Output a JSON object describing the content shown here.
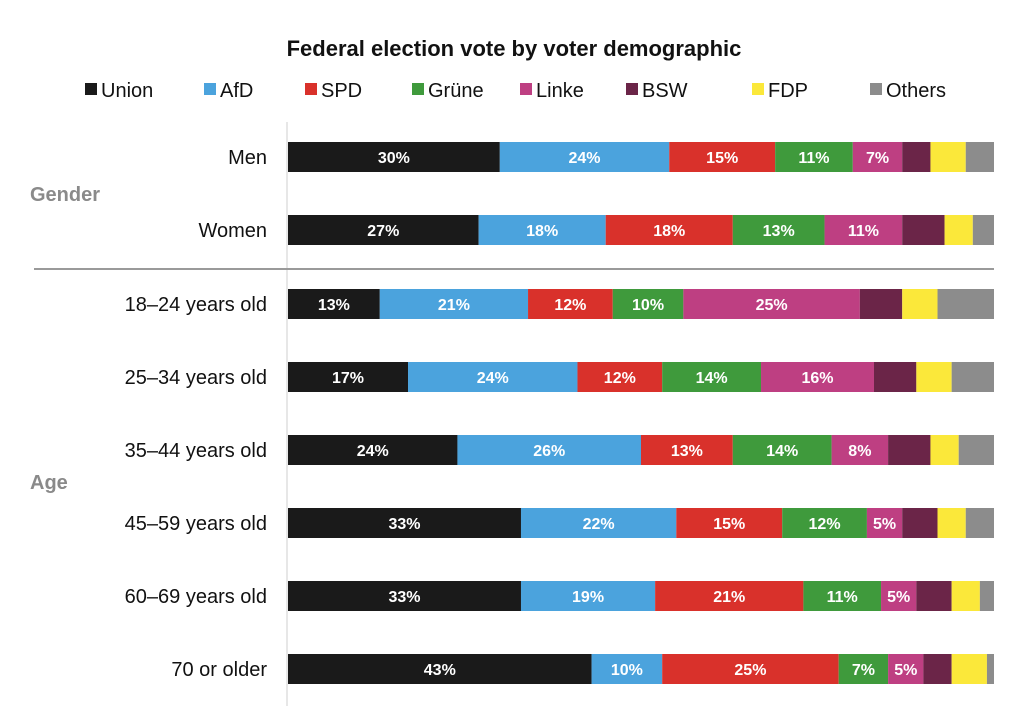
{
  "chart_data": {
    "type": "bar",
    "orientation": "horizontal",
    "stacked": true,
    "title": "Federal election vote by voter demographic",
    "legend_position": "top",
    "xlim": [
      0,
      100
    ],
    "groups": [
      {
        "label": "Gender",
        "rows": [
          "Men",
          "Women"
        ]
      },
      {
        "label": "Age",
        "rows": [
          "18–24 years old",
          "25–34 years old",
          "35–44 years old",
          "45–59 years old",
          "60–69 years old",
          "70 or older"
        ]
      }
    ],
    "categories": [
      "Men",
      "Women",
      "18–24 years old",
      "25–34 years old",
      "35–44 years old",
      "45–59 years old",
      "60–69 years old",
      "70 or older"
    ],
    "series": [
      {
        "name": "Union",
        "color": "#1a1a1a",
        "values": [
          30,
          27,
          13,
          17,
          24,
          33,
          33,
          43
        ]
      },
      {
        "name": "AfD",
        "color": "#4ba3dd",
        "values": [
          24,
          18,
          21,
          24,
          26,
          22,
          19,
          10
        ]
      },
      {
        "name": "SPD",
        "color": "#d9312b",
        "values": [
          15,
          18,
          12,
          12,
          13,
          15,
          21,
          25
        ]
      },
      {
        "name": "Grüne",
        "color": "#3f9a3c",
        "values": [
          11,
          13,
          10,
          14,
          14,
          12,
          11,
          7
        ]
      },
      {
        "name": "Linke",
        "color": "#be3f82",
        "values": [
          7,
          11,
          25,
          16,
          8,
          5,
          5,
          5
        ]
      },
      {
        "name": "BSW",
        "color": "#6b2548",
        "values": [
          4,
          6,
          6,
          6,
          6,
          5,
          5,
          4
        ]
      },
      {
        "name": "FDP",
        "color": "#fbe83a",
        "values": [
          5,
          4,
          5,
          5,
          4,
          4,
          4,
          5
        ]
      },
      {
        "name": "Others",
        "color": "#8c8c8c",
        "values": [
          4,
          3,
          8,
          6,
          5,
          4,
          2,
          1
        ]
      }
    ],
    "data_labels": [
      [
        "30%",
        "24%",
        "15%",
        "11%",
        "7%",
        "",
        "",
        ""
      ],
      [
        "27%",
        "18%",
        "18%",
        "13%",
        "11%",
        "",
        "",
        ""
      ],
      [
        "13%",
        "21%",
        "12%",
        "10%",
        "25%",
        "",
        "",
        ""
      ],
      [
        "17%",
        "24%",
        "12%",
        "14%",
        "16%",
        "",
        "",
        ""
      ],
      [
        "24%",
        "26%",
        "13%",
        "14%",
        "8%",
        "",
        "",
        ""
      ],
      [
        "33%",
        "22%",
        "15%",
        "12%",
        "5%",
        "",
        "",
        ""
      ],
      [
        "33%",
        "19%",
        "21%",
        "11%",
        "5%",
        "",
        "",
        ""
      ],
      [
        "43%",
        "10%",
        "25%",
        "7%",
        "5%",
        "",
        "",
        ""
      ]
    ]
  }
}
